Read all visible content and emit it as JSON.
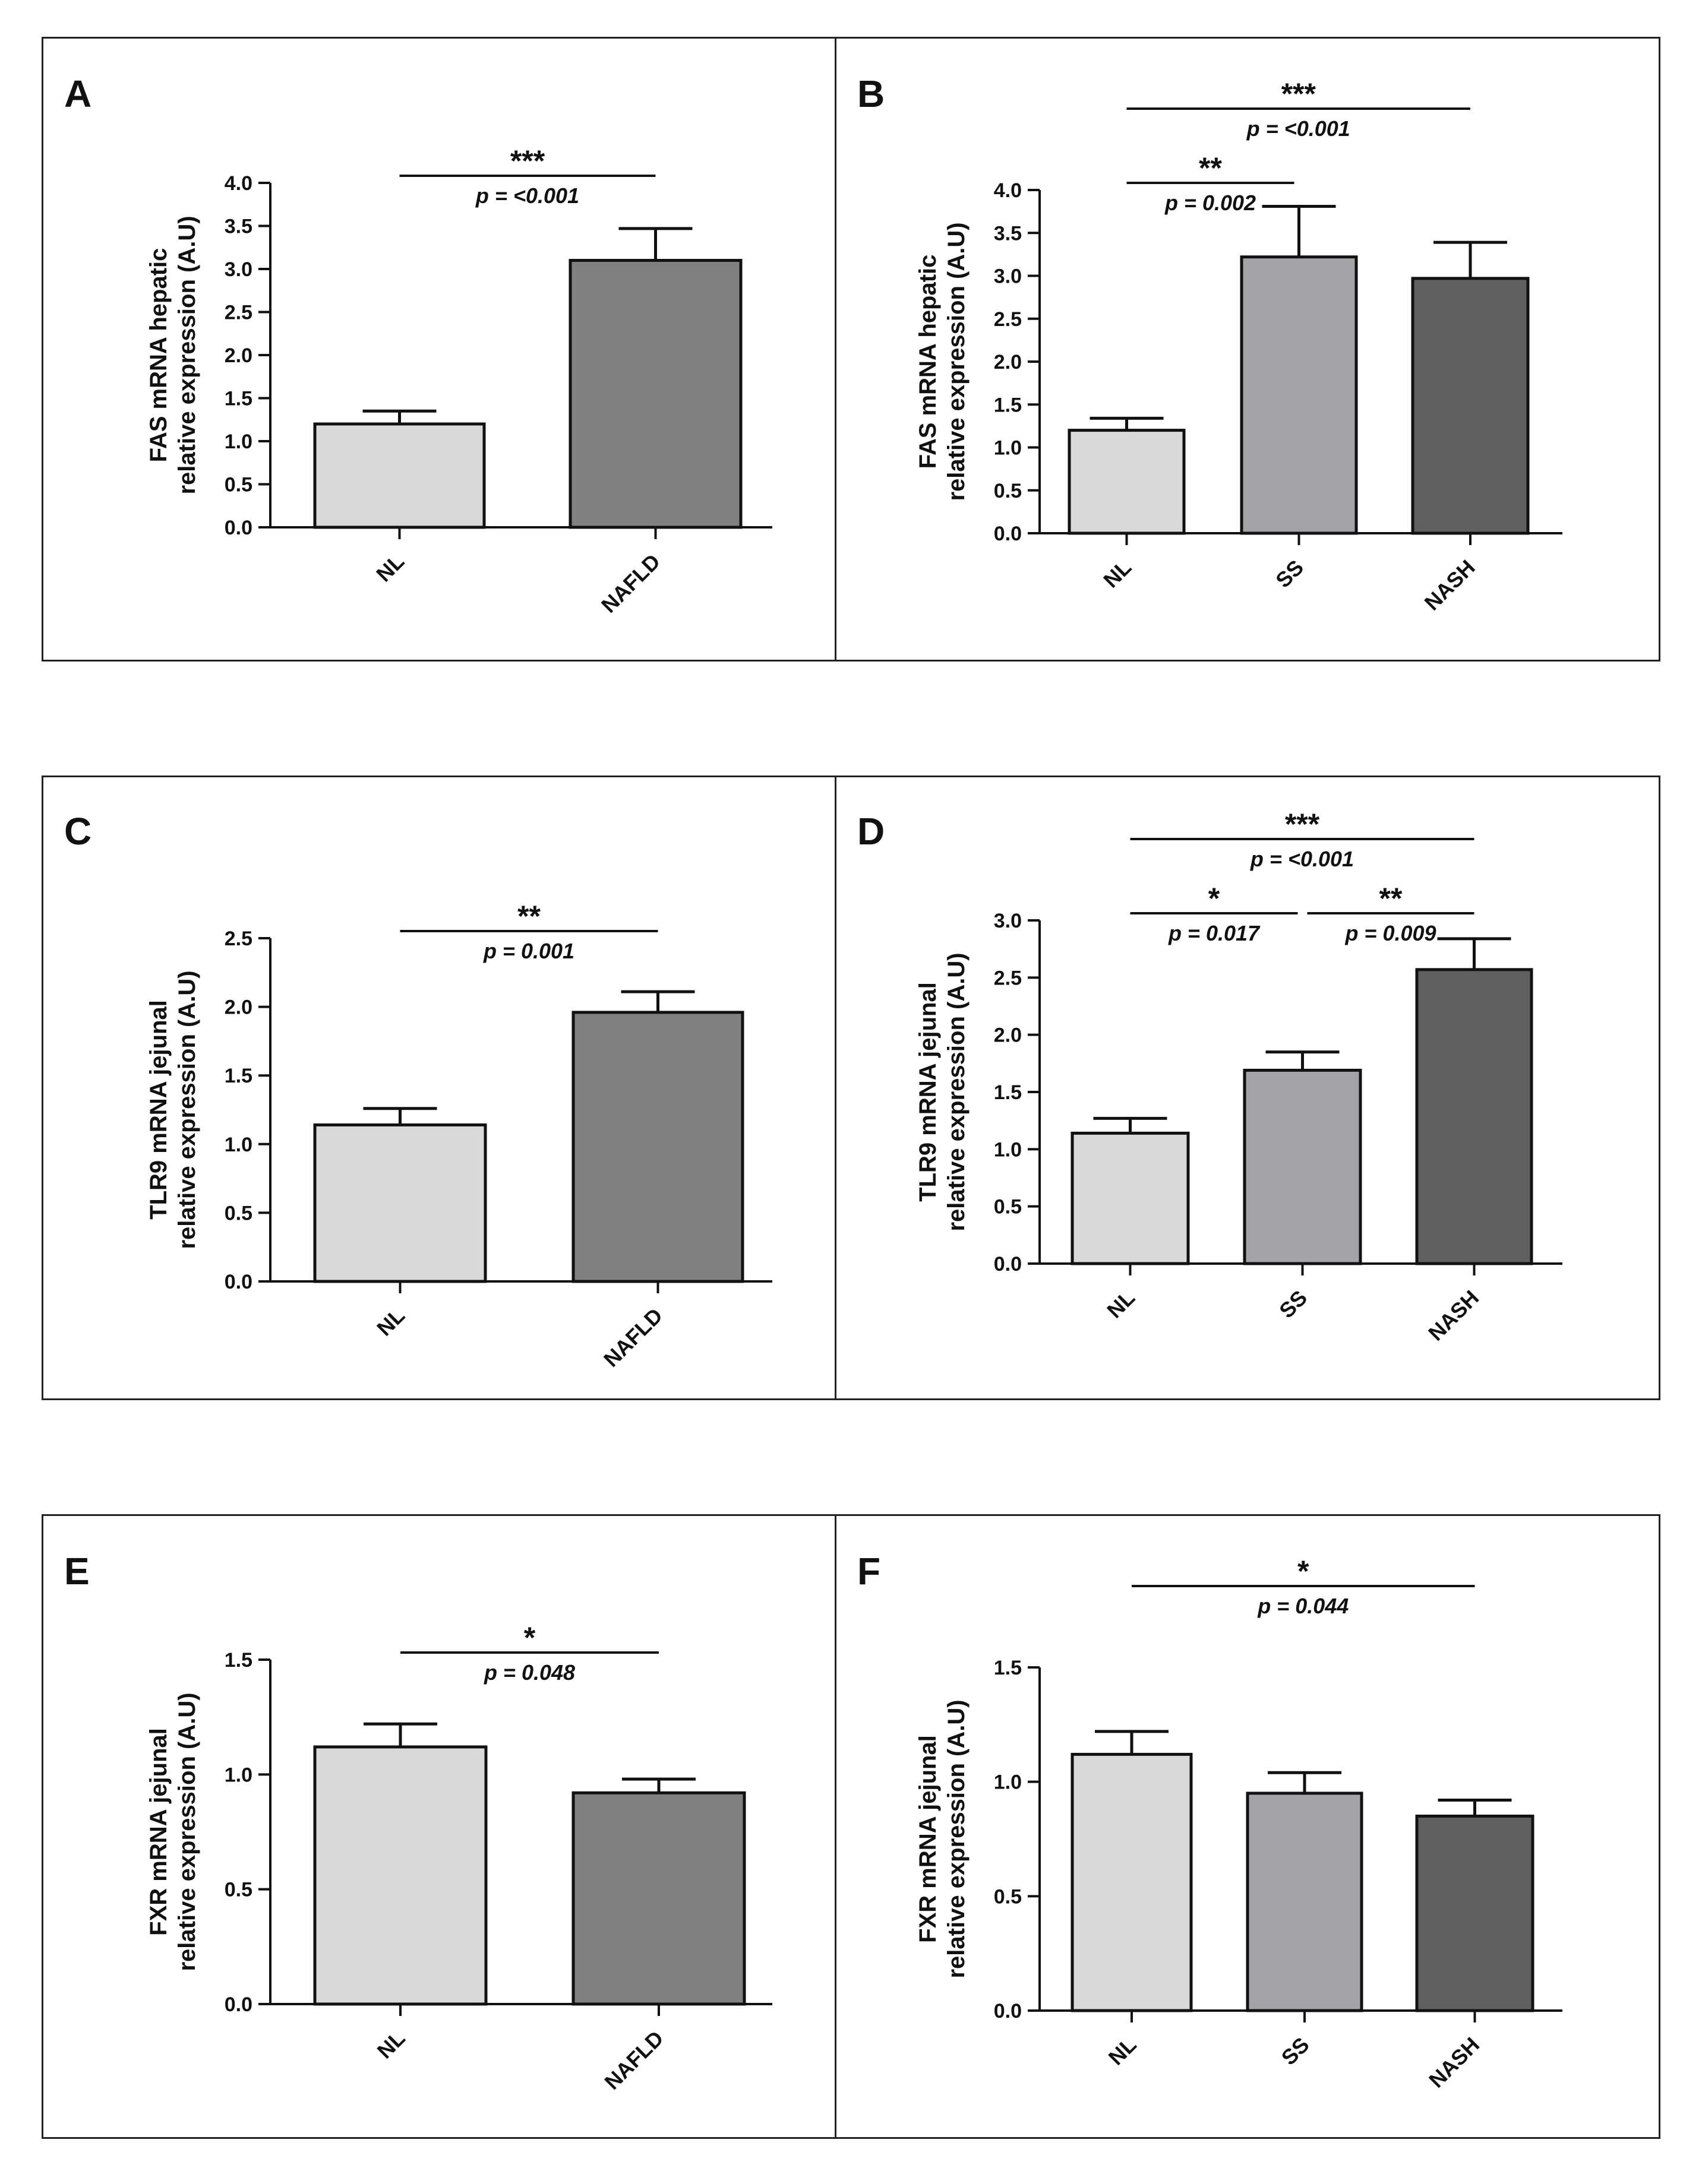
{
  "colors": {
    "NL": "#d9d9d9",
    "SS": "#a4a3a8",
    "NASH": "#5f5f5f",
    "NAFLD": "#808080",
    "outline": "#111111"
  },
  "chart_data": [
    {
      "panel": "A",
      "type": "bar",
      "ylabel": [
        "FAS mRNA hepatic",
        "relative expression (A.U)"
      ],
      "categories": [
        "NL",
        "NAFLD"
      ],
      "values": [
        1.2,
        3.1
      ],
      "errors": [
        0.15,
        0.37
      ],
      "ylim": [
        0,
        4.0
      ],
      "yticks": [
        "0.0",
        "0.5",
        "1.0",
        "1.5",
        "2.0",
        "2.5",
        "3.0",
        "3.5",
        "4.0"
      ],
      "comparisons": [
        {
          "from": 0,
          "to": 1,
          "stars": "***",
          "p": "p = <0.001"
        }
      ]
    },
    {
      "panel": "B",
      "type": "bar",
      "ylabel": [
        "FAS mRNA hepatic",
        "relative expression (A.U)"
      ],
      "categories": [
        "NL",
        "SS",
        "NASH"
      ],
      "values": [
        1.2,
        3.22,
        2.97
      ],
      "errors": [
        0.14,
        0.59,
        0.42
      ],
      "ylim": [
        0,
        4.0
      ],
      "yticks": [
        "0.0",
        "0.5",
        "1.0",
        "1.5",
        "2.0",
        "2.5",
        "3.0",
        "3.5",
        "4.0"
      ],
      "comparisons": [
        {
          "from": 0,
          "to": 1,
          "stars": "**",
          "p": "p = 0.002"
        },
        {
          "from": 0,
          "to": 2,
          "stars": "***",
          "p": "p = <0.001"
        }
      ]
    },
    {
      "panel": "C",
      "type": "bar",
      "ylabel": [
        "TLR9 mRNA jejunal",
        "relative expression (A.U)"
      ],
      "categories": [
        "NL",
        "NAFLD"
      ],
      "values": [
        1.14,
        1.96
      ],
      "errors": [
        0.12,
        0.15
      ],
      "ylim": [
        0,
        2.5
      ],
      "yticks": [
        "0.0",
        "0.5",
        "1.0",
        "1.5",
        "2.0",
        "2.5"
      ],
      "comparisons": [
        {
          "from": 0,
          "to": 1,
          "stars": "**",
          "p": "p = 0.001"
        }
      ]
    },
    {
      "panel": "D",
      "type": "bar",
      "ylabel": [
        "TLR9 mRNA jejunal",
        "relative expression (A.U)"
      ],
      "categories": [
        "NL",
        "SS",
        "NASH"
      ],
      "values": [
        1.14,
        1.69,
        2.57
      ],
      "errors": [
        0.13,
        0.16,
        0.27
      ],
      "ylim": [
        0,
        3.0
      ],
      "yticks": [
        "0.0",
        "0.5",
        "1.0",
        "1.5",
        "2.0",
        "2.5",
        "3.0"
      ],
      "comparisons": [
        {
          "from": 0,
          "to": 1,
          "stars": "*",
          "p": "p = 0.017"
        },
        {
          "from": 1,
          "to": 2,
          "stars": "**",
          "p": "p = 0.009"
        },
        {
          "from": 0,
          "to": 2,
          "stars": "***",
          "p": "p = <0.001"
        }
      ]
    },
    {
      "panel": "E",
      "type": "bar",
      "ylabel": [
        "FXR mRNA jejunal",
        "relative expression (A.U)"
      ],
      "categories": [
        "NL",
        "NAFLD"
      ],
      "values": [
        1.12,
        0.92
      ],
      "errors": [
        0.1,
        0.06
      ],
      "ylim": [
        0,
        1.5
      ],
      "yticks": [
        "0.0",
        "0.5",
        "1.0",
        "1.5"
      ],
      "comparisons": [
        {
          "from": 0,
          "to": 1,
          "stars": "*",
          "p": "p = 0.048"
        }
      ]
    },
    {
      "panel": "F",
      "type": "bar",
      "ylabel": [
        "FXR mRNA jejunal",
        "relative expression (A.U)"
      ],
      "categories": [
        "NL",
        "SS",
        "NASH"
      ],
      "values": [
        1.12,
        0.95,
        0.85
      ],
      "errors": [
        0.1,
        0.09,
        0.07
      ],
      "ylim": [
        0,
        1.5
      ],
      "yticks": [
        "0.0",
        "0.5",
        "1.0",
        "1.5"
      ],
      "comparisons": [
        {
          "from": 0,
          "to": 2,
          "stars": "*",
          "p": "p = 0.044"
        }
      ]
    }
  ]
}
